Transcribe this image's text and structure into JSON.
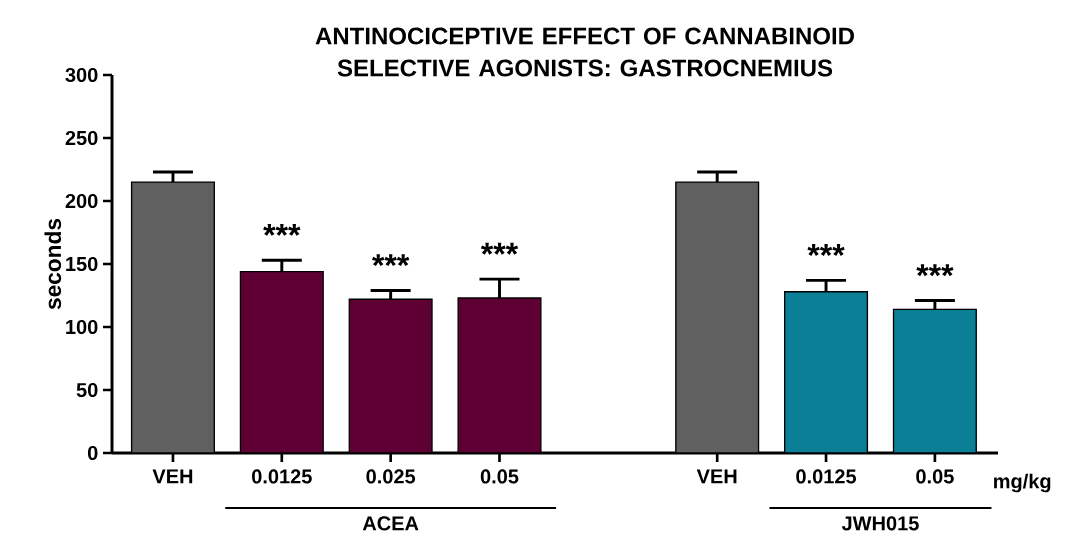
{
  "chart_data": {
    "type": "bar",
    "title": "ANTINOCICEPTIVE EFFECT OF CANNABINOID SELECTIVE AGONISTS: GASTROCNEMIUS",
    "ylabel": "seconds",
    "xlabel": "mg/kg",
    "categories": [
      "VEH",
      "0.0125",
      "0.025",
      "0.05",
      null,
      "VEH",
      "0.0125",
      "0.05"
    ],
    "values": [
      215,
      144,
      122,
      123,
      null,
      215,
      128,
      114
    ],
    "colors": [
      "#606060",
      "#5e0033",
      "#5e0033",
      "#5e0033",
      null,
      "#606060",
      "#0a7f96",
      "#0a7f96"
    ],
    "errors": [
      [
        215,
        223
      ],
      [
        144,
        153
      ],
      [
        122,
        129
      ],
      [
        123,
        138
      ],
      null,
      [
        215,
        223
      ],
      [
        128,
        137
      ],
      [
        114,
        121
      ]
    ],
    "ylim": [
      0,
      300
    ],
    "yticks": [
      0,
      50,
      100,
      150,
      200,
      250,
      300
    ],
    "annotations": [
      "***",
      "***",
      "***",
      "***",
      "***",
      "ACEA",
      "JWH015"
    ]
  }
}
